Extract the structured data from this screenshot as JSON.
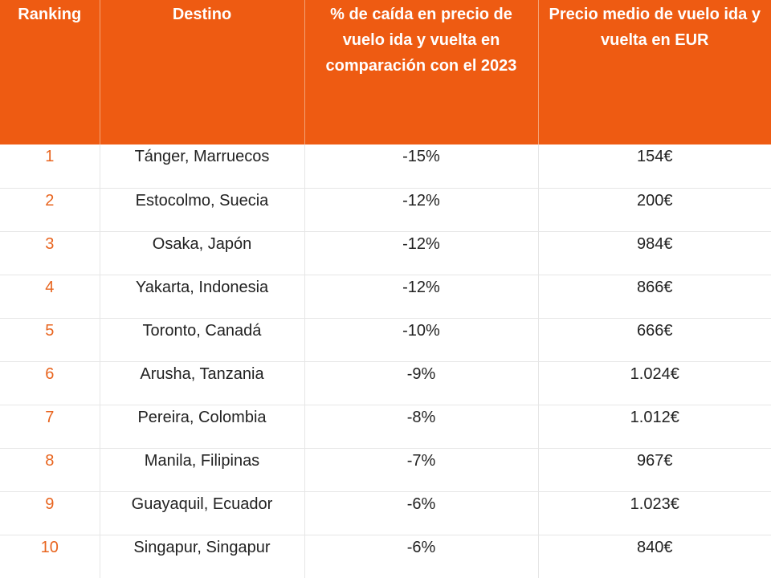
{
  "colors": {
    "header_bg": "#ee5b12",
    "rank_text": "#e8641e"
  },
  "headers": [
    "Ranking",
    "Destino",
    "% de caída en precio de vuelo ida y vuelta en comparación con el 2023",
    "Precio medio de vuelo ida y vuelta en EUR"
  ],
  "rows": [
    {
      "rank": "1",
      "destination": "Tánger, Marruecos",
      "drop": "-15%",
      "price": "154€"
    },
    {
      "rank": "2",
      "destination": "Estocolmo, Suecia",
      "drop": "-12%",
      "price": "200€"
    },
    {
      "rank": "3",
      "destination": "Osaka, Japón",
      "drop": "-12%",
      "price": "984€"
    },
    {
      "rank": "4",
      "destination": "Yakarta, Indonesia",
      "drop": "-12%",
      "price": "866€"
    },
    {
      "rank": "5",
      "destination": "Toronto, Canadá",
      "drop": "-10%",
      "price": "666€"
    },
    {
      "rank": "6",
      "destination": "Arusha, Tanzania",
      "drop": "-9%",
      "price": "1.024€"
    },
    {
      "rank": "7",
      "destination": "Pereira, Colombia",
      "drop": "-8%",
      "price": "1.012€"
    },
    {
      "rank": "8",
      "destination": "Manila, Filipinas",
      "drop": "-7%",
      "price": "967€"
    },
    {
      "rank": "9",
      "destination": "Guayaquil, Ecuador",
      "drop": "-6%",
      "price": "1.023€"
    },
    {
      "rank": "10",
      "destination": "Singapur, Singapur",
      "drop": "-6%",
      "price": "840€"
    }
  ]
}
